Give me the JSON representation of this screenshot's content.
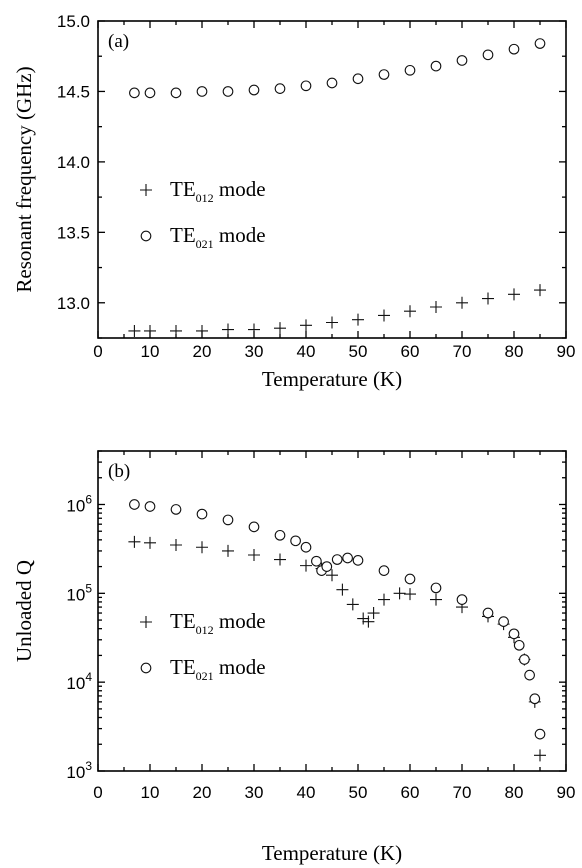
{
  "chart_data": [
    {
      "id": "a",
      "type": "scatter",
      "panel_label": "(a)",
      "xlabel": "Temperature (K)",
      "ylabel": "Resonant frequency (GHz)",
      "xlim": [
        0,
        90
      ],
      "ylim": [
        12.75,
        15.0
      ],
      "x_ticks": [
        0,
        10,
        20,
        30,
        40,
        50,
        60,
        70,
        80,
        90
      ],
      "y_ticks": [
        13.0,
        13.5,
        14.0,
        14.5,
        15.0
      ],
      "y_tick_labels": [
        "13.0",
        "13.5",
        "14.0",
        "14.5",
        "15.0"
      ],
      "y_scale": "linear",
      "grid": false,
      "legend_position": "center-left",
      "legend": [
        {
          "base": "TE",
          "sub": "012",
          "suffix": " mode",
          "marker": "plus"
        },
        {
          "base": "TE",
          "sub": "021",
          "suffix": " mode",
          "marker": "circle"
        }
      ],
      "series": [
        {
          "marker": "plus",
          "x": [
            7,
            10,
            15,
            20,
            25,
            30,
            35,
            40,
            45,
            50,
            55,
            60,
            65,
            70,
            75,
            80,
            85
          ],
          "y": [
            12.8,
            12.8,
            12.8,
            12.8,
            12.81,
            12.81,
            12.82,
            12.84,
            12.86,
            12.88,
            12.91,
            12.94,
            12.97,
            13.0,
            13.03,
            13.06,
            13.09
          ]
        },
        {
          "marker": "circle",
          "x": [
            7,
            10,
            15,
            20,
            25,
            30,
            35,
            40,
            45,
            50,
            55,
            60,
            65,
            70,
            75,
            80,
            85
          ],
          "y": [
            14.49,
            14.49,
            14.49,
            14.5,
            14.5,
            14.51,
            14.52,
            14.54,
            14.56,
            14.59,
            14.62,
            14.65,
            14.68,
            14.72,
            14.76,
            14.8,
            14.84
          ]
        }
      ]
    },
    {
      "id": "b",
      "type": "scatter",
      "panel_label": "(b)",
      "xlabel": "Temperature (K)",
      "ylabel": "Unloaded Q",
      "xlim": [
        0,
        90
      ],
      "ylim": [
        1000,
        4000000
      ],
      "x_ticks": [
        0,
        10,
        20,
        30,
        40,
        50,
        60,
        70,
        80,
        90
      ],
      "y_ticks": [
        1000,
        10000,
        100000,
        1000000
      ],
      "y_tick_exponents": [
        "3",
        "4",
        "5",
        "6"
      ],
      "y_tick_base": "10",
      "y_scale": "log",
      "grid": false,
      "legend_position": "center-left",
      "legend": [
        {
          "base": "TE",
          "sub": "012",
          "suffix": " mode",
          "marker": "plus"
        },
        {
          "base": "TE",
          "sub": "021",
          "suffix": " mode",
          "marker": "circle"
        }
      ],
      "series": [
        {
          "marker": "plus",
          "x": [
            7,
            10,
            15,
            20,
            25,
            30,
            35,
            40,
            43,
            45,
            47,
            49,
            51,
            52,
            53,
            55,
            58,
            60,
            65,
            70,
            75,
            78,
            80,
            82,
            84,
            85
          ],
          "y": [
            380000,
            370000,
            350000,
            330000,
            300000,
            270000,
            240000,
            205000,
            190000,
            160000,
            110000,
            75000,
            52000,
            48000,
            60000,
            85000,
            100000,
            98000,
            85000,
            70000,
            55000,
            45000,
            32000,
            18000,
            6000,
            1500
          ]
        },
        {
          "marker": "circle",
          "x": [
            7,
            10,
            15,
            20,
            25,
            30,
            35,
            38,
            40,
            42,
            43,
            44,
            46,
            48,
            50,
            55,
            60,
            65,
            70,
            75,
            78,
            80,
            81,
            82,
            83,
            84,
            85
          ],
          "y": [
            1000000,
            950000,
            880000,
            780000,
            670000,
            560000,
            450000,
            390000,
            330000,
            230000,
            180000,
            200000,
            240000,
            250000,
            235000,
            180000,
            145000,
            115000,
            85000,
            60000,
            48000,
            35000,
            26000,
            18000,
            12000,
            6500,
            2600
          ]
        }
      ]
    }
  ]
}
